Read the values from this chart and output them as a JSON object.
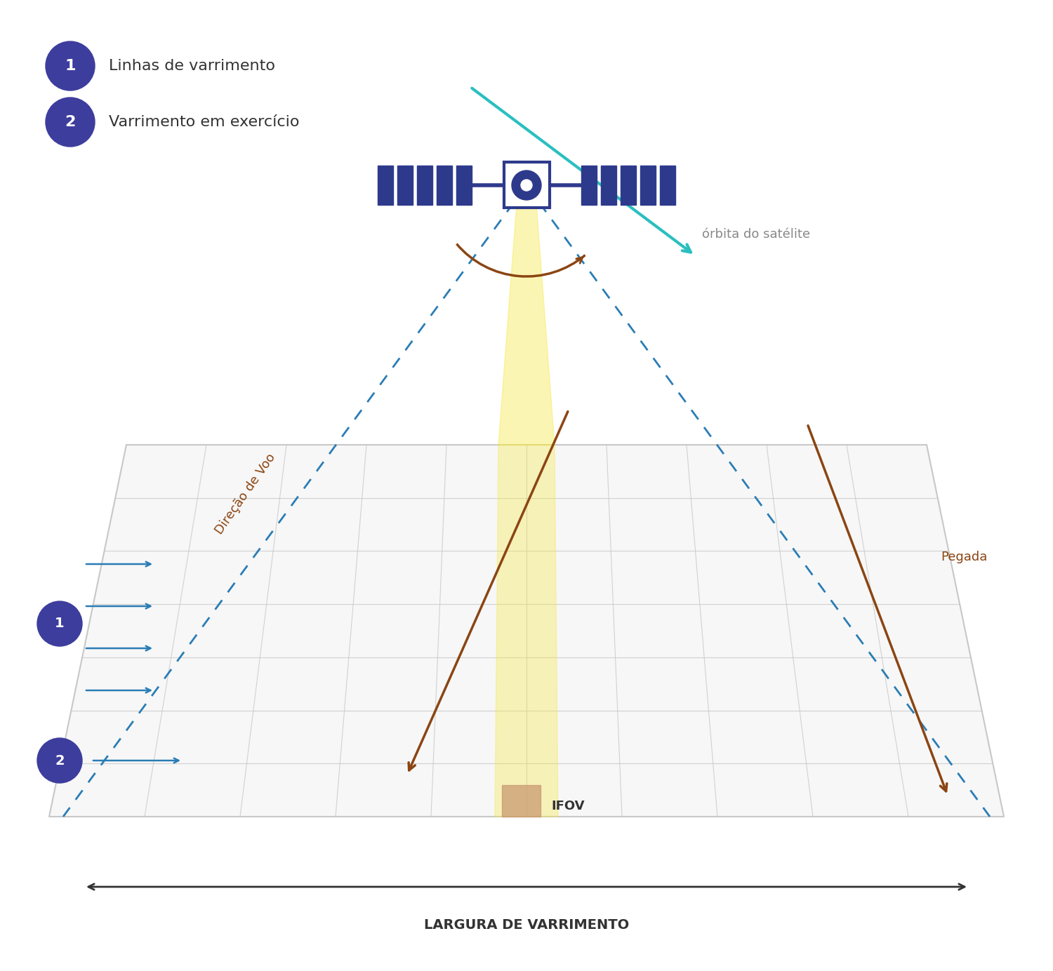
{
  "title": "",
  "bg_color": "#ffffff",
  "legend_1_text": "Linhas de varrimento",
  "legend_2_text": "Varrimento em exercício",
  "legend_circle_color": "#3d3d9e",
  "orbit_label": "órbita do satélite",
  "orbit_color": "#2bbfbf",
  "direcao_label": "Direção de Voo",
  "direcao_color": "#8B4513",
  "pegada_label": "Pegada",
  "pegada_color": "#8B4513",
  "ifov_label": "IFOV",
  "largura_label": "LARGURA DE VARRIMENTO",
  "satellite_color": "#2d3a8c",
  "dashed_color": "#2a7db5",
  "scan_beam_color": "#f5e642",
  "scan_beam_alpha": 0.5,
  "grid_color": "#c8c8c8",
  "grid_alpha": 0.8,
  "arrow_color": "#2a7db5",
  "brown_arrow_color": "#8B4513",
  "scan_arc_color": "#8B4513"
}
